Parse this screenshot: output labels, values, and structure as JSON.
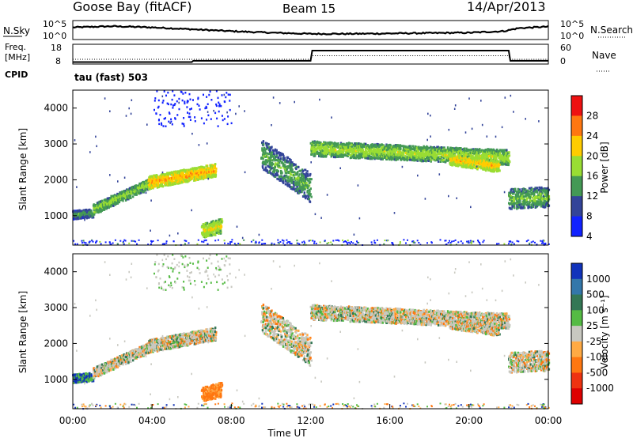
{
  "header": {
    "station": "Goose Bay (fitACF)",
    "beam": "Beam 15",
    "date": "14/Apr/2013"
  },
  "chart_data": [
    {
      "type": "line",
      "panel": "noise",
      "left_label": "N.Sky",
      "right_label": "N.Search",
      "left_ticks": [
        "10^5",
        "10^0"
      ],
      "right_ticks": [
        "10^5",
        "10^0"
      ],
      "x": [
        "00:00",
        "02:00",
        "04:00",
        "06:00",
        "08:00",
        "10:00",
        "12:00",
        "14:00",
        "16:00",
        "18:00",
        "20:00",
        "21:45",
        "22:30",
        "24:00"
      ],
      "series": [
        {
          "name": "N.Sky",
          "values": [
            3.2,
            3.5,
            3.2,
            2.7,
            2.2,
            1.8,
            1.5,
            1.5,
            1.6,
            1.7,
            1.8,
            2.2,
            3.0,
            3.4
          ]
        }
      ]
    },
    {
      "type": "line",
      "panel": "frequency",
      "left_label": "Freq.",
      "left_unit": "[MHz]",
      "cpid_label": "CPID",
      "right_label": "Nave",
      "left_ticks": [
        "18",
        "8"
      ],
      "right_ticks": [
        "60",
        "0"
      ],
      "x": [
        "00:00",
        "06:00",
        "06:05",
        "12:00",
        "12:05",
        "22:00",
        "22:05",
        "24:00"
      ],
      "series": [
        {
          "name": "Freq.",
          "values": [
            9.5,
            9.5,
            10.4,
            10.4,
            18.0,
            18.0,
            10.4,
            10.4
          ]
        },
        {
          "name": "Nave",
          "values": [
            0,
            0,
            0,
            0,
            15,
            15,
            0,
            0
          ]
        }
      ]
    },
    {
      "type": "heatmap",
      "panel": "power",
      "mode_label": "tau (fast) 503",
      "ylabel": "Slant Range [km]",
      "y_ticks": [
        "4000",
        "3000",
        "2000",
        "1000"
      ],
      "ylim": [
        180,
        4500
      ],
      "xlim": [
        0,
        24
      ],
      "colorbar_label": "Power [dB]",
      "colorbar_ticks": [
        "28",
        "24",
        "20",
        "16",
        "12",
        "8",
        "4"
      ],
      "colorbar_colors": [
        "#ee1111",
        "#ff7711",
        "#ffcc00",
        "#99dd33",
        "#449955",
        "#334499",
        "#1122ff"
      ],
      "echo_bands": [
        {
          "t_start": 0.0,
          "t_end": 1.0,
          "range_start": 1050,
          "range_end": 1100,
          "width": 150,
          "level": 10
        },
        {
          "t_start": 1.0,
          "t_end": 4.0,
          "range_start": 1200,
          "range_end": 1950,
          "width": 180,
          "level": 13
        },
        {
          "t_start": 3.8,
          "t_end": 7.2,
          "range_start": 1950,
          "range_end": 2300,
          "width": 220,
          "level": 19
        },
        {
          "t_start": 6.5,
          "t_end": 7.5,
          "range_start": 600,
          "range_end": 750,
          "width": 250,
          "level": 16
        },
        {
          "t_start": 9.5,
          "t_end": 12.0,
          "range_start": 2750,
          "range_end": 1800,
          "width": 500,
          "level": 11
        },
        {
          "t_start": 12.0,
          "t_end": 22.0,
          "range_start": 2900,
          "range_end": 2650,
          "width": 260,
          "level": 14
        },
        {
          "t_start": 19.0,
          "t_end": 21.5,
          "range_start": 2600,
          "range_end": 2400,
          "width": 200,
          "level": 18
        },
        {
          "t_start": 22.0,
          "t_end": 24.0,
          "range_start": 1500,
          "range_end": 1550,
          "width": 350,
          "level": 12
        }
      ]
    },
    {
      "type": "heatmap",
      "panel": "velocity",
      "ylabel": "Slant Range [km]",
      "xlabel": "Time UT",
      "y_ticks": [
        "4000",
        "3000",
        "2000",
        "1000"
      ],
      "x_ticks": [
        "00:00",
        "04:00",
        "08:00",
        "12:00",
        "16:00",
        "20:00",
        "00:00"
      ],
      "ylim": [
        180,
        4500
      ],
      "xlim": [
        0,
        24
      ],
      "colorbar_label": "Velocity [m s⁻¹]",
      "colorbar_ticks": [
        "1000",
        "500",
        "100",
        "25",
        "-25",
        "-100",
        "-500",
        "-1000"
      ],
      "colorbar_colors": [
        "#1133bb",
        "#3377aa",
        "#337755",
        "#55bb44",
        "#c8c8c0",
        "#ffaa44",
        "#ff7711",
        "#ee3311",
        "#dd0000"
      ]
    }
  ]
}
